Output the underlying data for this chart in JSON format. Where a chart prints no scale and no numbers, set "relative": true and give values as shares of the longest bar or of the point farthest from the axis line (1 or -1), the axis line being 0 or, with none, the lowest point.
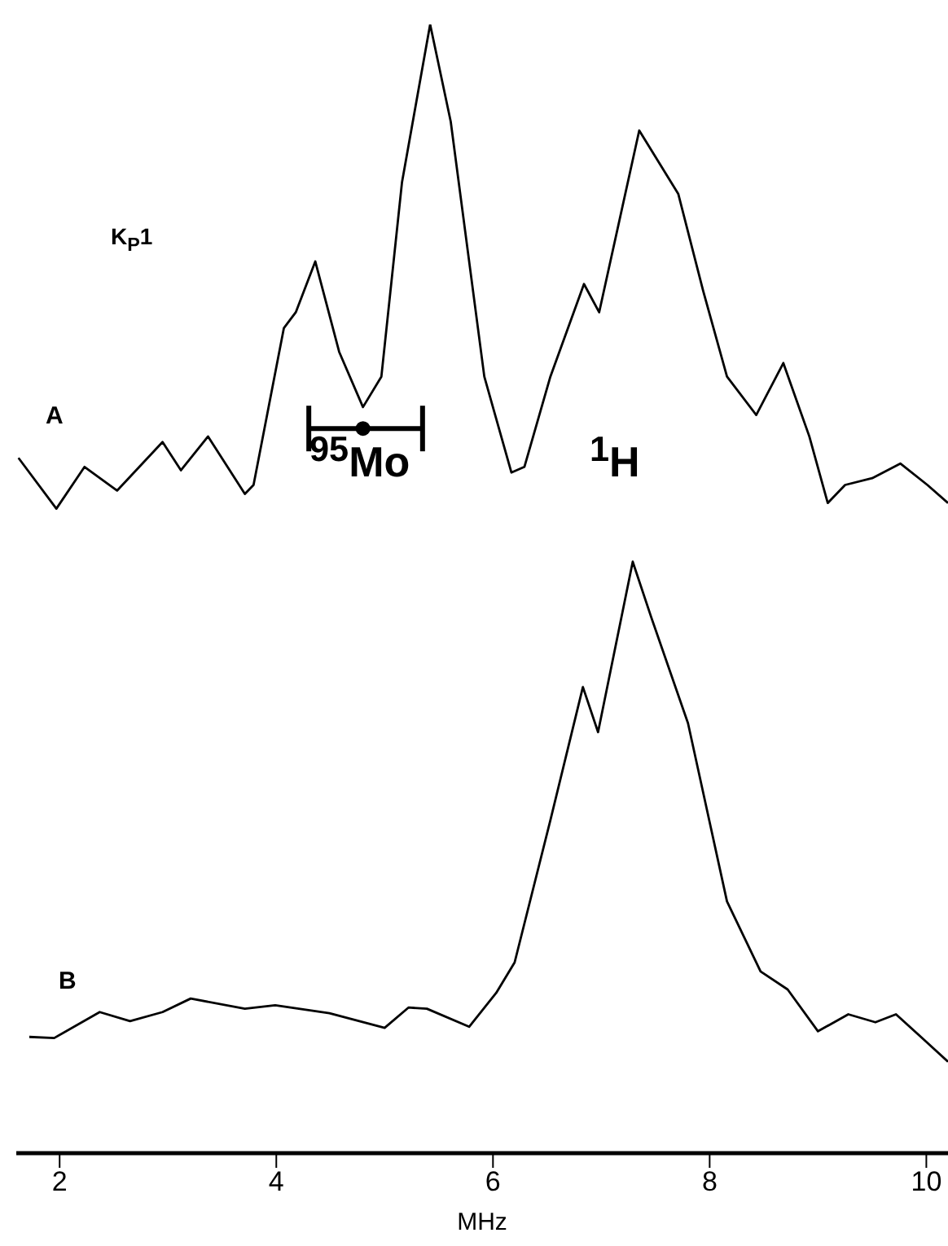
{
  "chart_data": {
    "type": "line",
    "relative": true,
    "xlim": [
      1.6,
      10.2
    ],
    "xticks": [
      2,
      4,
      6,
      8,
      10
    ],
    "xlabel": "MHz",
    "tick_labels": "x",
    "grid": false,
    "annotations": [
      "K$_{P}$1",
      "A",
      "$^{95}$Mo",
      "$^{1}$H",
      "B"
    ],
    "series": [
      {
        "color": "#000000",
        "line_style": "solid",
        "x": [
          1.62,
          1.97,
          2.23,
          2.53,
          2.95,
          3.12,
          3.37,
          3.71,
          3.79,
          4.07,
          4.18,
          4.36,
          4.58,
          4.8,
          4.97,
          5.16,
          5.42,
          5.61,
          5.92,
          6.17,
          6.29,
          6.53,
          6.84,
          6.98,
          7.35,
          7.71,
          7.94,
          8.16,
          8.43,
          8.68,
          8.92,
          9.09,
          9.25,
          9.5,
          9.76,
          10.01,
          10.2
        ],
        "values": [
          0.616,
          0.571,
          0.608,
          0.587,
          0.63,
          0.605,
          0.635,
          0.584,
          0.592,
          0.731,
          0.745,
          0.79,
          0.71,
          0.661,
          0.688,
          0.86,
          1,
          0.914,
          0.688,
          0.603,
          0.608,
          0.688,
          0.77,
          0.745,
          0.906,
          0.85,
          0.764,
          0.688,
          0.654,
          0.7,
          0.635,
          0.576,
          0.592,
          0.598,
          0.611,
          0.592,
          0.576
        ]
      },
      {
        "type": "scatter",
        "color": "#000000",
        "marker": "circle",
        "x": [
          4.8
        ],
        "values": [
          0.642
        ],
        "xerrors": [
          [
            4.3,
            5.35
          ]
        ]
      },
      {
        "color": "#000000",
        "line_style": "solid",
        "x": [
          1.72,
          1.95,
          2.37,
          2.65,
          2.95,
          3.21,
          3.71,
          3.99,
          4.49,
          5.0,
          5.22,
          5.39,
          5.78,
          6.03,
          6.2,
          6.53,
          6.83,
          6.97,
          7.29,
          7.46,
          7.8,
          8.16,
          8.47,
          8.72,
          9.0,
          9.28,
          9.53,
          9.72,
          9.95,
          10.2
        ],
        "values": [
          0.103,
          0.102,
          0.125,
          0.117,
          0.125,
          0.137,
          0.128,
          0.131,
          0.124,
          0.111,
          0.129,
          0.128,
          0.112,
          0.142,
          0.169,
          0.295,
          0.413,
          0.373,
          0.524,
          0.475,
          0.381,
          0.223,
          0.161,
          0.145,
          0.108,
          0.123,
          0.116,
          0.123,
          0.103,
          0.081
        ]
      }
    ]
  }
}
